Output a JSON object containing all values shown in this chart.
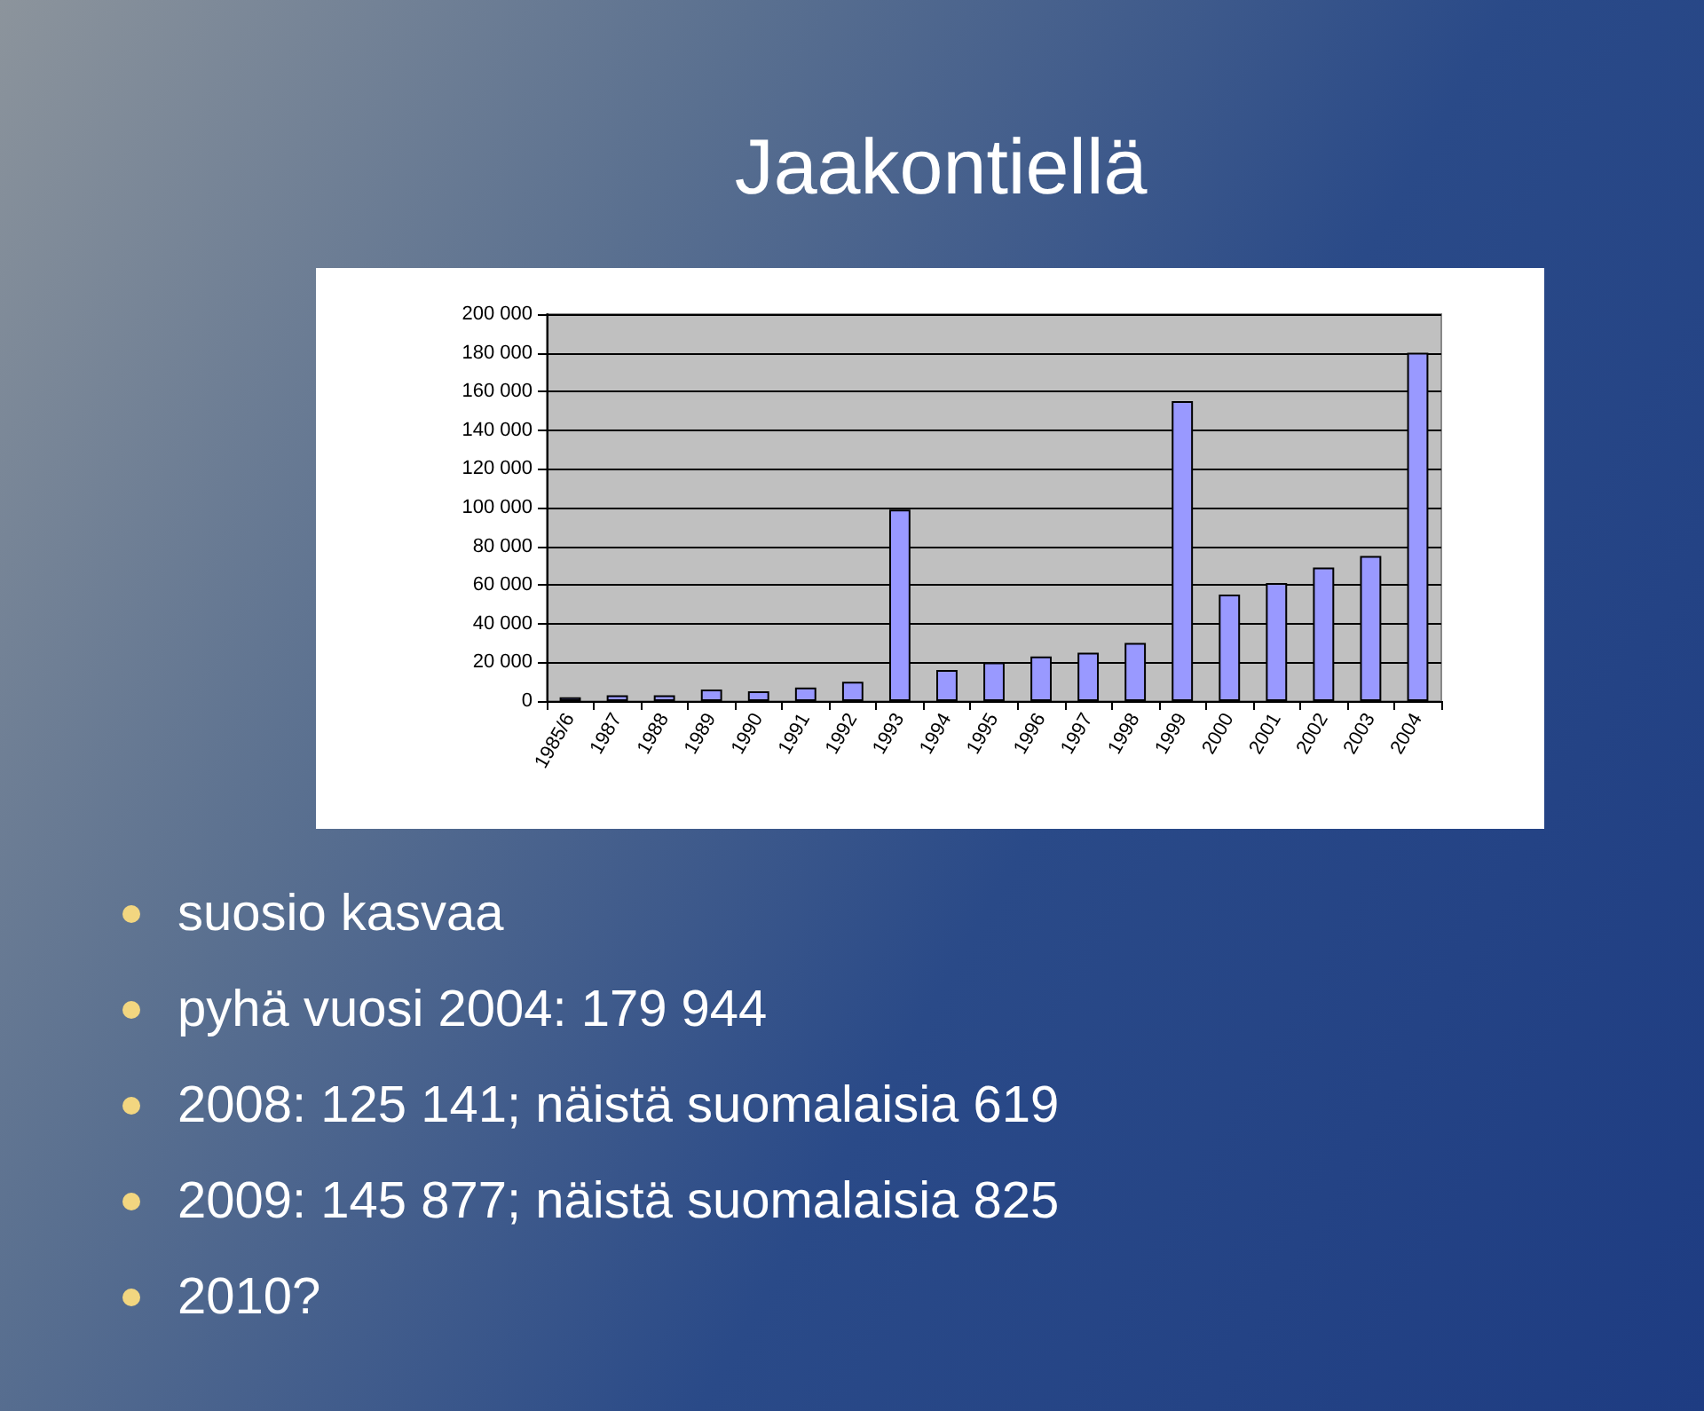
{
  "chart_data": {
    "type": "bar",
    "title": "Jaakontiellä",
    "categories": [
      "1985/6",
      "1987",
      "1988",
      "1989",
      "1990",
      "1991",
      "1992",
      "1993",
      "1994",
      "1995",
      "1996",
      "1997",
      "1998",
      "1999",
      "2000",
      "2001",
      "2002",
      "2003",
      "2004"
    ],
    "values": [
      2000,
      3000,
      3000,
      6000,
      5000,
      7000,
      10000,
      99000,
      16000,
      20000,
      23000,
      25000,
      30000,
      155000,
      55000,
      61000,
      69000,
      75000,
      180000
    ],
    "color": "#9999ff",
    "ylim": [
      0,
      200000
    ],
    "yticks": [
      0,
      {
        "value": 20000,
        "label": "20 000"
      },
      {
        "value": 40000,
        "label": "40 000"
      },
      {
        "value": 60000,
        "label": "60 000"
      },
      {
        "value": 80000,
        "label": "80 000"
      },
      {
        "value": 100000,
        "label": "100 000"
      },
      {
        "value": 120000,
        "label": "120 000"
      },
      {
        "value": 140000,
        "label": "140 000"
      },
      {
        "value": 160000,
        "label": "160 000"
      },
      {
        "value": 180000,
        "label": "180 000"
      },
      {
        "value": 200000,
        "label": "200 000"
      }
    ],
    "grid": "y",
    "annotations": [
      "suosio kasvaa",
      "pyhä vuosi 2004: 179 944",
      "2008: 125 141; näistä suomalaisia 619",
      "2009: 145 877; näistä suomalaisia 825",
      "2010?"
    ]
  }
}
